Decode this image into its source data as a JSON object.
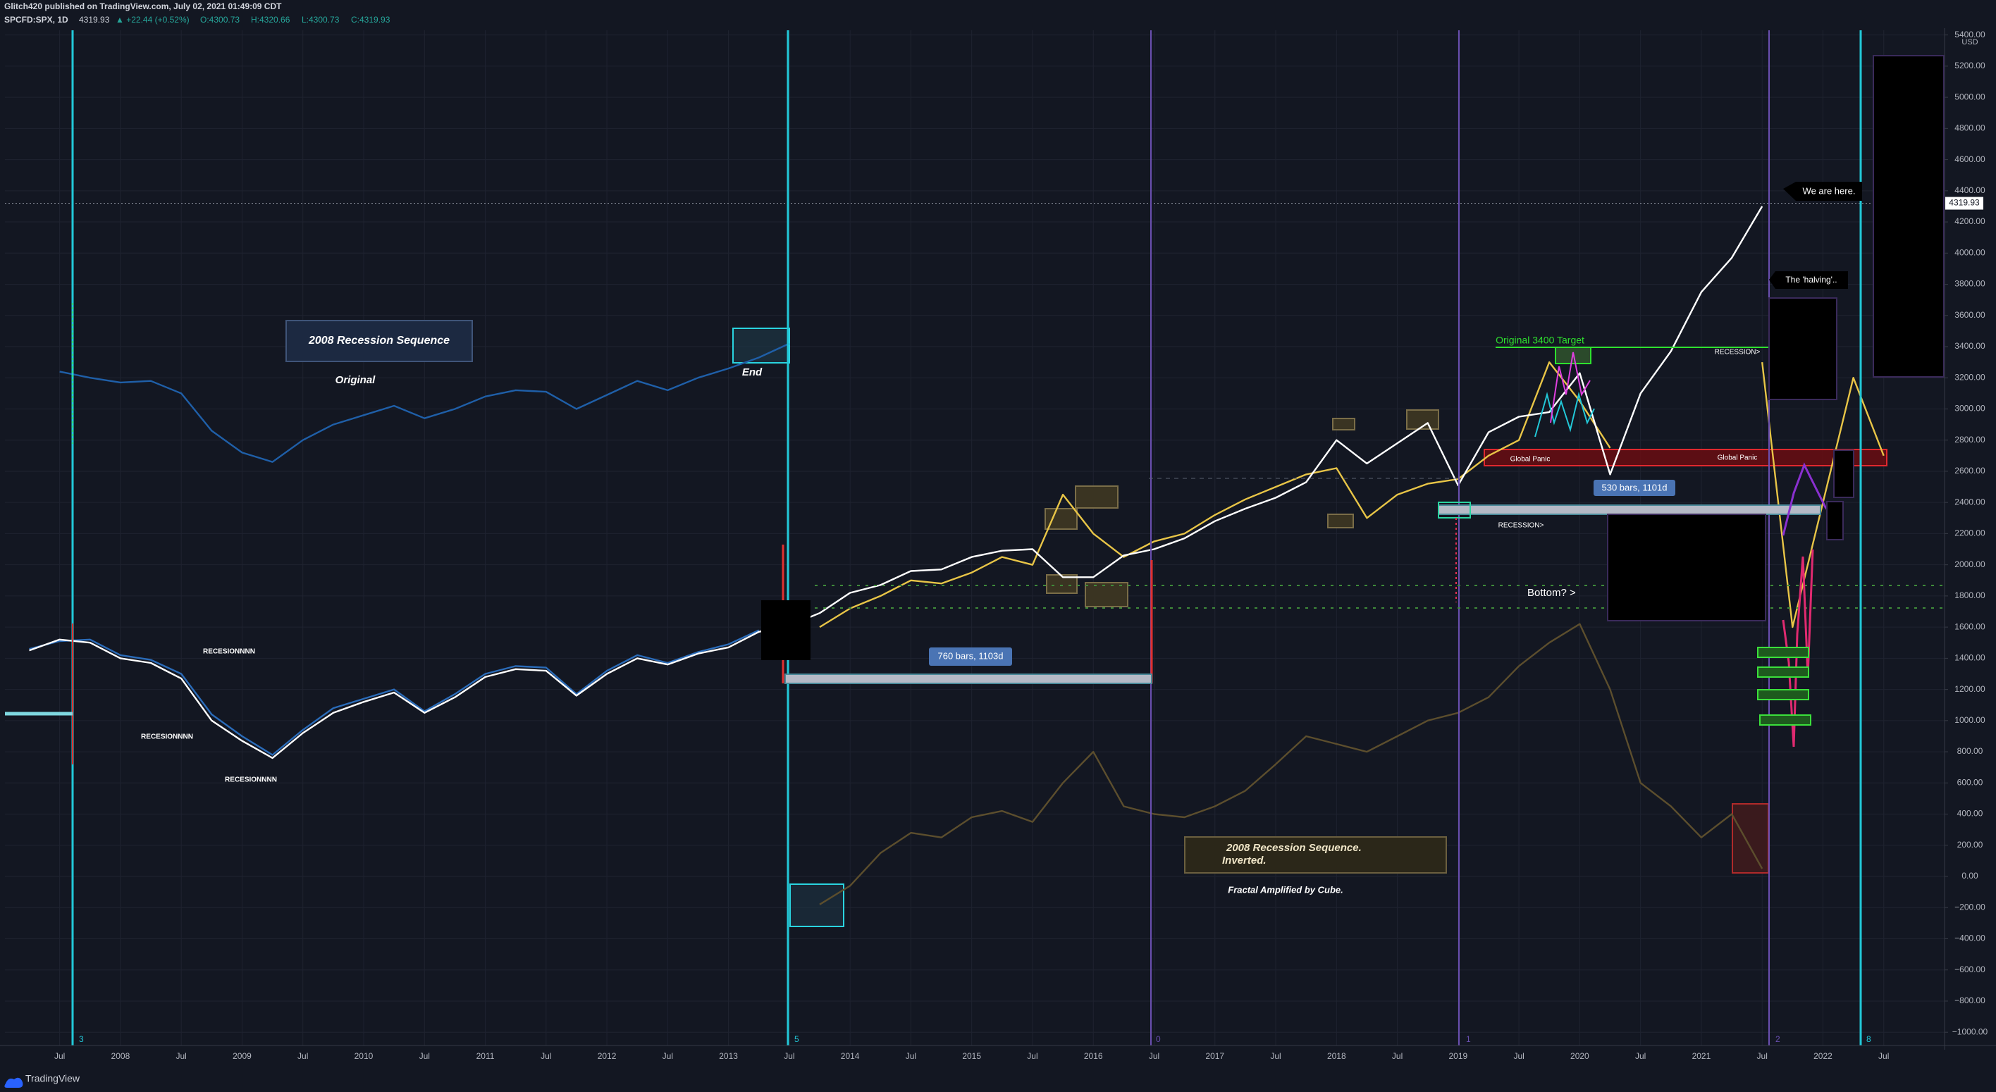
{
  "chart_data": {
    "type": "line",
    "header": {
      "publisher": "Glitch420 published on TradingView.com, July 02, 2021 01:49:09 CDT",
      "symbol": "SPCFD:SPX, 1D",
      "last": "4319.93",
      "change": "▲ +22.44 (+0.52%)",
      "ohlc": [
        "O:4300.73",
        "H:4320.66",
        "L:4300.73",
        "C:4319.93"
      ]
    },
    "footer": "TradingView",
    "currency": "USD",
    "price_line": 4319.93,
    "grid": true,
    "xlim": [
      2007.05,
      2023.0
    ],
    "ylim": [
      -1085,
      5430
    ],
    "xticks": [
      {
        "value": 2007.5,
        "label": "Jul"
      },
      2008,
      {
        "value": 2008.5,
        "label": "Jul"
      },
      2009,
      {
        "value": 2009.5,
        "label": "Jul"
      },
      2010,
      {
        "value": 2010.5,
        "label": "Jul"
      },
      2011,
      {
        "value": 2011.5,
        "label": "Jul"
      },
      2012,
      {
        "value": 2012.5,
        "label": "Jul"
      },
      2013,
      {
        "value": 2013.5,
        "label": "Jul"
      },
      2014,
      {
        "value": 2014.5,
        "label": "Jul"
      },
      2015,
      {
        "value": 2015.5,
        "label": "Jul"
      },
      2016,
      {
        "value": 2016.5,
        "label": "Jul"
      },
      2017,
      {
        "value": 2017.5,
        "label": "Jul"
      },
      2018,
      {
        "value": 2018.5,
        "label": "Jul"
      },
      2019,
      {
        "value": 2019.5,
        "label": "Jul"
      },
      2020,
      {
        "value": 2020.5,
        "label": "Jul"
      },
      2021,
      {
        "value": 2021.5,
        "label": "Jul"
      },
      2022,
      {
        "value": 2022.5,
        "label": "Jul"
      }
    ],
    "yticks": [
      {
        "value": -1000,
        "label": "−1000.00"
      },
      {
        "value": -800,
        "label": "−800.00"
      },
      {
        "value": -600,
        "label": "−600.00"
      },
      {
        "value": -400,
        "label": "−400.00"
      },
      {
        "value": -200,
        "label": "−200.00"
      },
      {
        "value": 0,
        "label": "0.00"
      },
      {
        "value": 200,
        "label": "200.00"
      },
      {
        "value": 400,
        "label": "400.00"
      },
      {
        "value": 600,
        "label": "600.00"
      },
      {
        "value": 800,
        "label": "800.00"
      },
      {
        "value": 1000,
        "label": "1000.00"
      },
      {
        "value": 1200,
        "label": "1200.00"
      },
      {
        "value": 1400,
        "label": "1400.00"
      },
      {
        "value": 1600,
        "label": "1600.00"
      },
      {
        "value": 1800,
        "label": "1800.00"
      },
      {
        "value": 2000,
        "label": "2000.00"
      },
      {
        "value": 2200,
        "label": "2200.00"
      },
      {
        "value": 2400,
        "label": "2400.00"
      },
      {
        "value": 2600,
        "label": "2600.00"
      },
      {
        "value": 2800,
        "label": "2800.00"
      },
      {
        "value": 3000,
        "label": "3000.00"
      },
      {
        "value": 3200,
        "label": "3200.00"
      },
      {
        "value": 3400,
        "label": "3400.00"
      },
      {
        "value": 3600,
        "label": "3600.00"
      },
      {
        "value": 3800,
        "label": "3800.00"
      },
      {
        "value": 4000,
        "label": "4000.00"
      },
      {
        "value": 4200,
        "label": "4200.00"
      },
      {
        "value": 4400,
        "label": "4400.00"
      },
      {
        "value": 4600,
        "label": "4600.00"
      },
      {
        "value": 4800,
        "label": "4800.00"
      },
      {
        "value": 5000,
        "label": "5000.00"
      },
      {
        "value": 5200,
        "label": "5200.00"
      },
      {
        "value": 5400,
        "label": "5400.00"
      }
    ],
    "x": [
      2007.25,
      2007.5,
      2007.75,
      2008,
      2008.25,
      2008.5,
      2008.75,
      2009,
      2009.25,
      2009.5,
      2009.75,
      2010,
      2010.25,
      2010.5,
      2010.75,
      2011,
      2011.25,
      2011.5,
      2011.75,
      2012,
      2012.25,
      2012.5,
      2012.75,
      2013,
      2013.25,
      2013.5,
      2013.75,
      2014,
      2014.25,
      2014.5,
      2014.75,
      2015,
      2015.25,
      2015.5,
      2015.75,
      2016,
      2016.25,
      2016.5,
      2016.75,
      2017,
      2017.25,
      2017.5,
      2017.75,
      2018,
      2018.25,
      2018.5,
      2018.75,
      2019,
      2019.25,
      2019.5,
      2019.75,
      2020,
      2020.25,
      2020.5,
      2020.75,
      2021,
      2021.25,
      2021.5,
      2021.75,
      2022,
      2022.25,
      2022.5
    ],
    "series": [
      {
        "color": "#5c4e2d",
        "values": [
          null,
          null,
          null,
          null,
          null,
          null,
          null,
          null,
          null,
          null,
          null,
          null,
          null,
          null,
          null,
          null,
          null,
          null,
          null,
          null,
          null,
          null,
          null,
          null,
          null,
          null,
          -180,
          -60,
          150,
          280,
          250,
          380,
          420,
          350,
          600,
          800,
          450,
          400,
          380,
          450,
          550,
          720,
          900,
          850,
          800,
          900,
          1000,
          1050,
          1150,
          1350,
          1500,
          1620,
          1200,
          600,
          450,
          250,
          400,
          50,
          null,
          null,
          null,
          null
        ]
      },
      {
        "color": "#1f5fa8",
        "values": [
          null,
          3240,
          3200,
          3170,
          3180,
          3100,
          2860,
          2720,
          2660,
          2800,
          2900,
          2960,
          3020,
          2940,
          3000,
          3080,
          3120,
          3110,
          3000,
          3090,
          3180,
          3120,
          3200,
          3260,
          3330,
          3420,
          null,
          null,
          null,
          null,
          null,
          null,
          null,
          null,
          null,
          null,
          null,
          null,
          null,
          null,
          null,
          null,
          null,
          null,
          null,
          null,
          null,
          null,
          null,
          null,
          null,
          null,
          null,
          null,
          null,
          null,
          null,
          null,
          null,
          null,
          null,
          null
        ]
      },
      {
        "color": "#2a6bb8",
        "values": [
          1460,
          1510,
          1520,
          1420,
          1390,
          1300,
          1040,
          900,
          780,
          940,
          1080,
          1140,
          1200,
          1060,
          1170,
          1300,
          1350,
          1340,
          1170,
          1320,
          1420,
          1370,
          1440,
          1490,
          1580,
          null,
          null,
          null,
          null,
          null,
          null,
          null,
          null,
          null,
          null,
          null,
          null,
          null,
          null,
          null,
          null,
          null,
          null,
          null,
          null,
          null,
          null,
          null,
          null,
          null,
          null,
          null,
          null,
          null,
          null,
          null,
          null,
          null,
          null,
          null,
          null,
          null
        ]
      },
      {
        "color": "#e8c547",
        "values": [
          null,
          null,
          null,
          null,
          null,
          null,
          null,
          null,
          null,
          null,
          null,
          null,
          null,
          null,
          null,
          null,
          null,
          null,
          null,
          null,
          null,
          null,
          null,
          null,
          null,
          null,
          1600,
          1720,
          1800,
          1900,
          1880,
          1950,
          2050,
          2000,
          2450,
          2200,
          2050,
          2150,
          2200,
          2320,
          2420,
          2500,
          2580,
          2620,
          2300,
          2450,
          2520,
          2550,
          2700,
          2800,
          3300,
          3050,
          2750,
          null,
          null,
          null,
          null,
          3300,
          1600,
          2400,
          3200,
          2700
        ]
      },
      {
        "color": "#ffffff",
        "values": [
          1450,
          1520,
          1500,
          1400,
          1370,
          1270,
          1000,
          870,
          760,
          920,
          1050,
          1120,
          1180,
          1050,
          1150,
          1280,
          1330,
          1320,
          1160,
          1300,
          1400,
          1360,
          1430,
          1470,
          1570,
          1610,
          1690,
          1820,
          1870,
          1960,
          1970,
          2050,
          2090,
          2100,
          1920,
          1920,
          2060,
          2100,
          2170,
          2280,
          2360,
          2430,
          2530,
          2800,
          2650,
          2780,
          2910,
          2510,
          2850,
          2950,
          2980,
          3230,
          2580,
          3100,
          3370,
          3750,
          3970,
          4300,
          null,
          null,
          null,
          null
        ]
      }
    ],
    "annotations": [
      "2008 Recession Sequence",
      "Original",
      "End",
      "RECESIONNNN",
      "RECESIONNNN",
      "RECESIONNNN",
      "760 bars, 1103d",
      "2008 Recession Sequence.",
      "Inverted.",
      "Fractal Amplified by Cube.",
      "Original 3400 Target",
      "Global Panic",
      "Global Panic",
      "RECESSION>",
      "RECESSION>",
      "530 bars, 1101d",
      "Bottom? >",
      "We are here.",
      "The 'halving'.."
    ],
    "cycle_labels": [
      "3",
      "5",
      "0",
      "1",
      "2",
      "8"
    ]
  }
}
